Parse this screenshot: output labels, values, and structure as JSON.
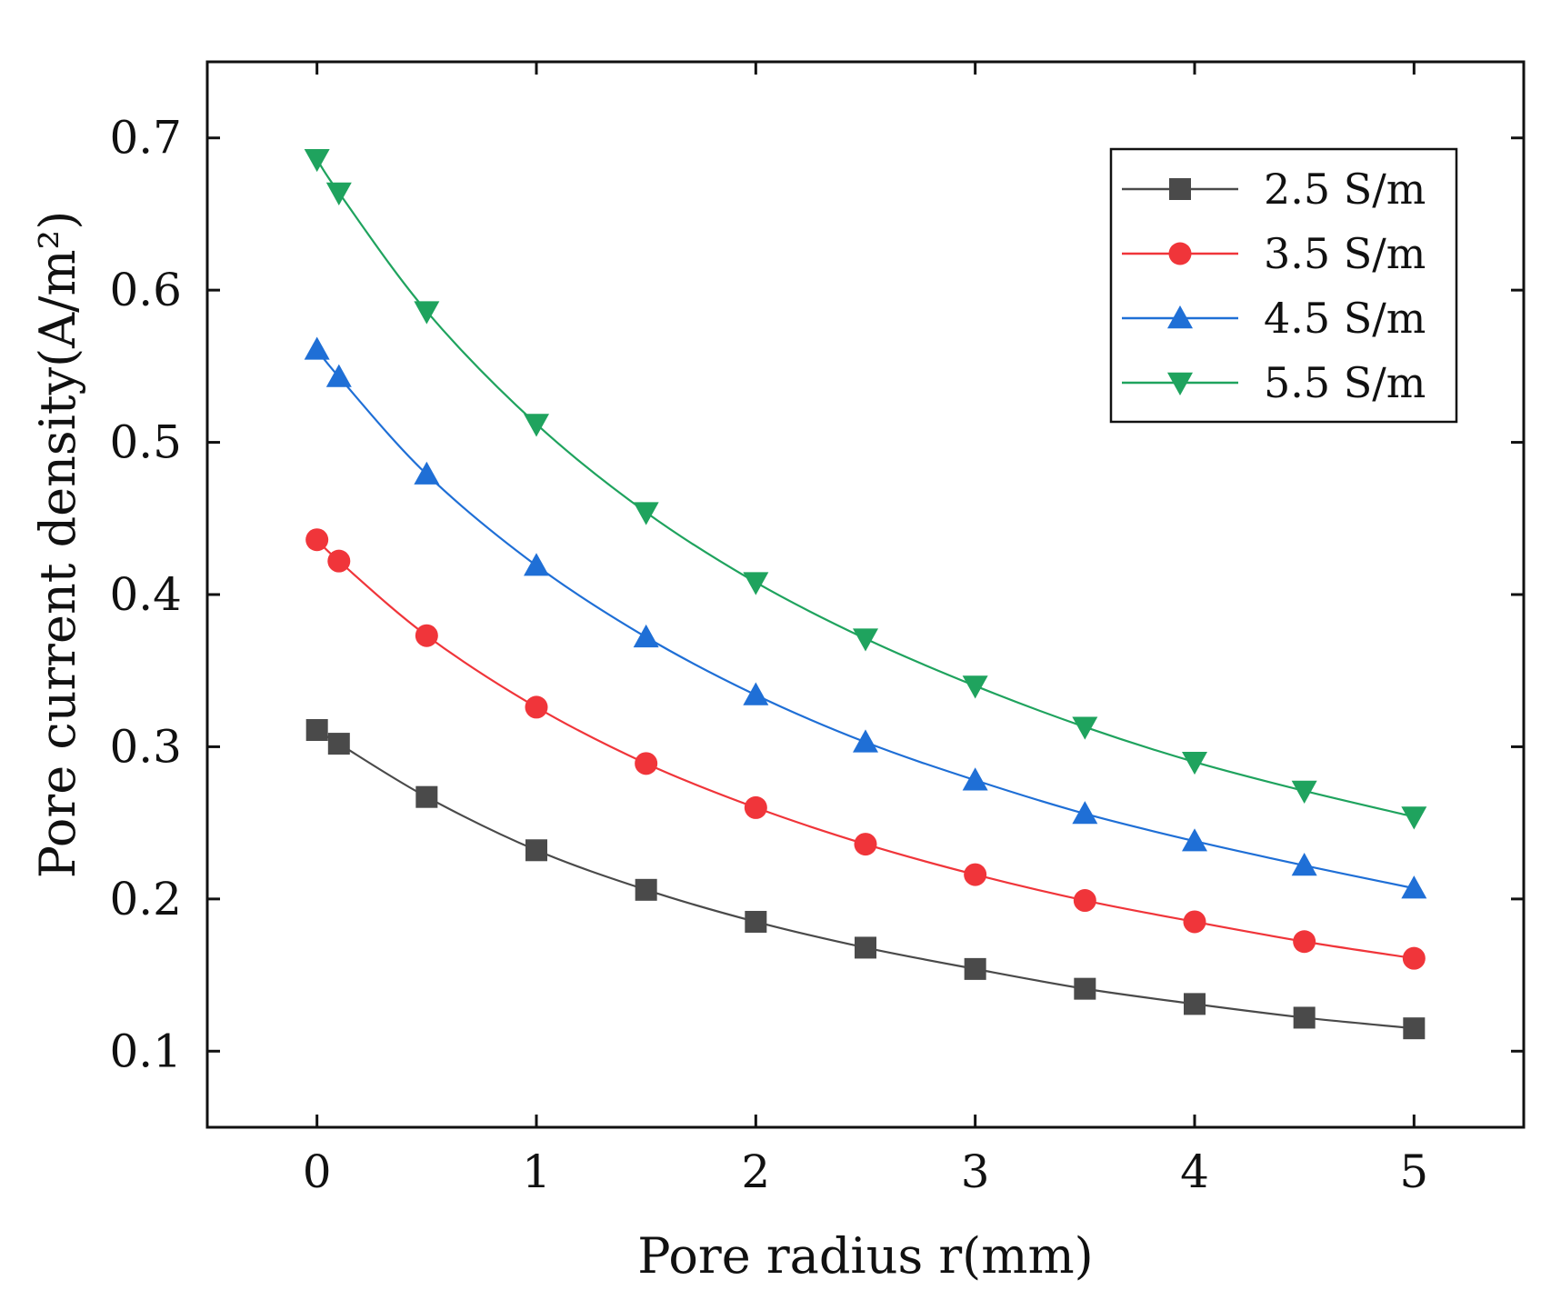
{
  "chart_data": {
    "type": "line",
    "title": "",
    "xlabel": "Pore radius r(mm)",
    "ylabel": "Pore current density(A/m²)",
    "xlim": [
      -0.5,
      5.5
    ],
    "ylim": [
      0.05,
      0.75
    ],
    "xticks": [
      0,
      1,
      2,
      3,
      4,
      5
    ],
    "xtick_labels": [
      "0",
      "1",
      "2",
      "3",
      "4",
      "5"
    ],
    "yticks": [
      0.1,
      0.2,
      0.3,
      0.4,
      0.5,
      0.6,
      0.7
    ],
    "ytick_labels": [
      "0.1",
      "0.2",
      "0.3",
      "0.4",
      "0.5",
      "0.6",
      "0.7"
    ],
    "grid": false,
    "legend_position": "top-right",
    "x": [
      0,
      0.1,
      0.5,
      1,
      1.5,
      2,
      2.5,
      3,
      3.5,
      4,
      4.5,
      5
    ],
    "series": [
      {
        "name": "2.5 S/m",
        "marker": "square",
        "color": "#4a4a4a",
        "values": [
          0.311,
          0.302,
          0.267,
          0.232,
          0.206,
          0.185,
          0.168,
          0.154,
          0.141,
          0.131,
          0.122,
          0.115
        ]
      },
      {
        "name": "3.5 S/m",
        "marker": "circle",
        "color": "#f0353a",
        "values": [
          0.436,
          0.422,
          0.373,
          0.326,
          0.289,
          0.26,
          0.236,
          0.216,
          0.199,
          0.185,
          0.172,
          0.161
        ]
      },
      {
        "name": "4.5 S/m",
        "marker": "triangle-up",
        "color": "#1f6fd6",
        "values": [
          0.561,
          0.543,
          0.479,
          0.419,
          0.372,
          0.334,
          0.303,
          0.278,
          0.256,
          0.238,
          0.222,
          0.207
        ]
      },
      {
        "name": "5.5 S/m",
        "marker": "triangle-down",
        "color": "#1fa35e",
        "values": [
          0.686,
          0.664,
          0.586,
          0.512,
          0.454,
          0.408,
          0.371,
          0.34,
          0.313,
          0.29,
          0.271,
          0.254
        ]
      }
    ]
  }
}
